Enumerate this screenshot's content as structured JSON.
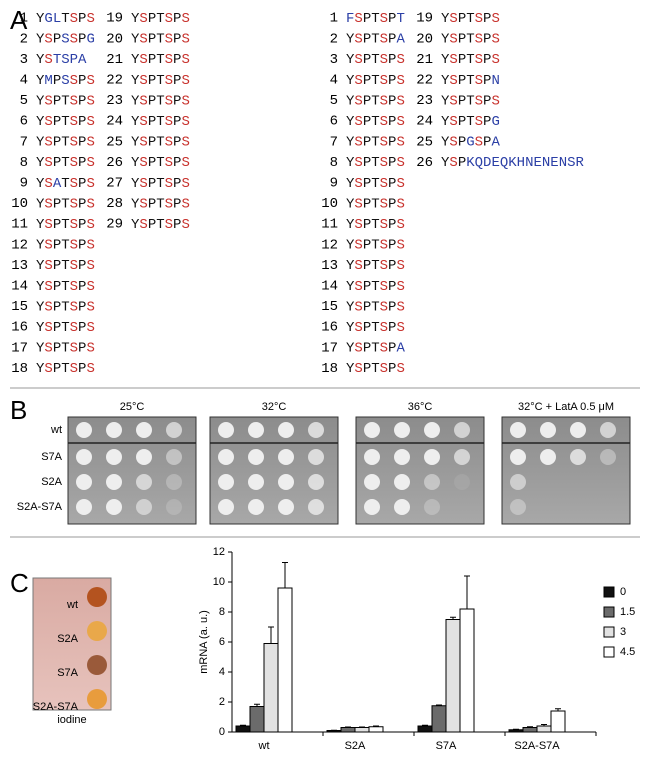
{
  "panel_a": {
    "label": "A",
    "groups": [
      {
        "repeats": [
          {
            "n": "1",
            "seq": "YGLTSPS"
          },
          {
            "n": "2",
            "seq": "YSPSSPG"
          },
          {
            "n": "3",
            "seq": "YSTSPA"
          },
          {
            "n": "4",
            "seq": "YMPSSPS"
          },
          {
            "n": "5",
            "seq": "YSPTSPS"
          },
          {
            "n": "6",
            "seq": "YSPTSPS"
          },
          {
            "n": "7",
            "seq": "YSPTSPS"
          },
          {
            "n": "8",
            "seq": "YSPTSPS"
          },
          {
            "n": "9",
            "seq": "YSATSPS"
          },
          {
            "n": "10",
            "seq": "YSPTSPS"
          },
          {
            "n": "11",
            "seq": "YSPTSPS"
          },
          {
            "n": "12",
            "seq": "YSPTSPS"
          },
          {
            "n": "13",
            "seq": "YSPTSPS"
          },
          {
            "n": "14",
            "seq": "YSPTSPS"
          },
          {
            "n": "15",
            "seq": "YSPTSPS"
          },
          {
            "n": "16",
            "seq": "YSPTSPS"
          },
          {
            "n": "17",
            "seq": "YSPTSPS"
          },
          {
            "n": "18",
            "seq": "YSPTSPS"
          },
          {
            "n": "19",
            "seq": "YSPTSPS"
          },
          {
            "n": "20",
            "seq": "YSPTSPS"
          },
          {
            "n": "21",
            "seq": "YSPTSPS"
          },
          {
            "n": "22",
            "seq": "YSPTSPS"
          },
          {
            "n": "23",
            "seq": "YSPTSPS"
          },
          {
            "n": "24",
            "seq": "YSPTSPS"
          },
          {
            "n": "25",
            "seq": "YSPTSPS"
          },
          {
            "n": "26",
            "seq": "YSPTSPS"
          },
          {
            "n": "27",
            "seq": "YSPTSPS"
          },
          {
            "n": "28",
            "seq": "YSPTSPS"
          },
          {
            "n": "29",
            "seq": "YSPTSPS"
          }
        ]
      },
      {
        "repeats": [
          {
            "n": "1",
            "seq": "FSPTSPT"
          },
          {
            "n": "2",
            "seq": "YSPTSPA"
          },
          {
            "n": "3",
            "seq": "YSPTSPS"
          },
          {
            "n": "4",
            "seq": "YSPTSPS"
          },
          {
            "n": "5",
            "seq": "YSPTSPS"
          },
          {
            "n": "6",
            "seq": "YSPTSPS"
          },
          {
            "n": "7",
            "seq": "YSPTSPS"
          },
          {
            "n": "8",
            "seq": "YSPTSPS"
          },
          {
            "n": "9",
            "seq": "YSPTSPS"
          },
          {
            "n": "10",
            "seq": "YSPTSPS"
          },
          {
            "n": "11",
            "seq": "YSPTSPS"
          },
          {
            "n": "12",
            "seq": "YSPTSPS"
          },
          {
            "n": "13",
            "seq": "YSPTSPS"
          },
          {
            "n": "14",
            "seq": "YSPTSPS"
          },
          {
            "n": "15",
            "seq": "YSPTSPS"
          },
          {
            "n": "16",
            "seq": "YSPTSPS"
          },
          {
            "n": "17",
            "seq": "YSPTSPA"
          },
          {
            "n": "18",
            "seq": "YSPTSPS"
          },
          {
            "n": "19",
            "seq": "YSPTSPS"
          },
          {
            "n": "20",
            "seq": "YSPTSPS"
          },
          {
            "n": "21",
            "seq": "YSPTSPS"
          },
          {
            "n": "22",
            "seq": "YSPTSPN"
          },
          {
            "n": "23",
            "seq": "YSPTSPS"
          },
          {
            "n": "24",
            "seq": "YSPTSPG"
          },
          {
            "n": "25",
            "seq": "YSPGSPA"
          },
          {
            "n": "26",
            "seq": "YSPKQDEQKHNENENSR"
          }
        ]
      }
    ]
  },
  "panel_b": {
    "label": "B",
    "conditions": [
      "25°C",
      "32°C",
      "36°C",
      "32°C + LatA 0.5 μM"
    ],
    "strains": [
      "wt",
      "S7A",
      "S2A",
      "S2A-S7A"
    ]
  },
  "panel_c": {
    "label": "C",
    "strains": [
      "wt",
      "S2A",
      "S7A",
      "S2A-S7A"
    ],
    "caption": "iodine"
  },
  "chart_data": {
    "type": "bar",
    "ylabel": "mRNA (a. u.)",
    "categories": [
      "wt",
      "S2A",
      "S7A",
      "S2A-S7A"
    ],
    "series": [
      {
        "name": "0",
        "color": "#111111",
        "values": [
          0.4,
          0.1,
          0.4,
          0.15
        ],
        "errors": [
          0.05,
          0.02,
          0.05,
          0.03
        ]
      },
      {
        "name": "1.5",
        "color": "#6b6b6b",
        "values": [
          1.7,
          0.3,
          1.75,
          0.3
        ],
        "errors": [
          0.15,
          0.03,
          0.05,
          0.05
        ]
      },
      {
        "name": "3",
        "color": "#e2e2e2",
        "values": [
          5.9,
          0.3,
          7.5,
          0.4
        ],
        "errors": [
          1.1,
          0.03,
          0.15,
          0.1
        ]
      },
      {
        "name": "4.5",
        "color": "#ffffff",
        "values": [
          9.6,
          0.35,
          8.2,
          1.4
        ],
        "errors": [
          1.7,
          0.05,
          2.2,
          0.15
        ]
      }
    ],
    "ylim": [
      0,
      12
    ],
    "yticks": [
      0,
      2,
      4,
      6,
      8,
      10,
      12
    ],
    "legend": "right"
  }
}
